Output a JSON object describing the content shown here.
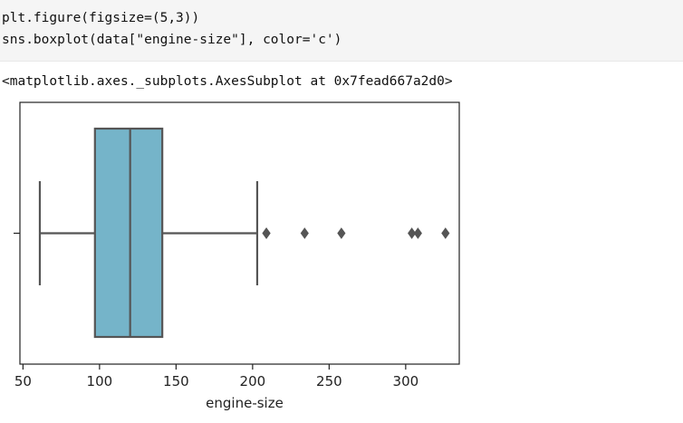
{
  "code_cell": {
    "lines": [
      "plt.figure(figsize=(5,3))",
      "sns.boxplot(data[\"engine-size\"], color='c')"
    ]
  },
  "output": {
    "text": "<matplotlib.axes._subplots.AxesSubplot at 0x7fead667a2d0>"
  },
  "chart_data": {
    "type": "box",
    "title": "",
    "xlabel": "engine-size",
    "ylabel": "",
    "xlim": [
      48,
      335
    ],
    "x_ticks": [
      50,
      100,
      150,
      200,
      250,
      300
    ],
    "box": {
      "whisker_low": 61,
      "q1": 97,
      "median": 120,
      "q3": 141,
      "whisker_high": 203
    },
    "outliers": [
      209,
      209,
      234,
      258,
      304,
      308,
      326
    ],
    "colors": {
      "box_fill": "#75b4c9",
      "line": "#555555",
      "frame": "#222222"
    },
    "grid": false
  }
}
